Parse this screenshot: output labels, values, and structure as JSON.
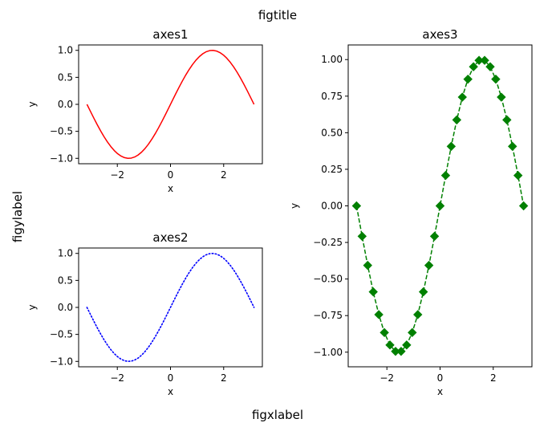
{
  "chart_data": {
    "type": "line",
    "figure": {
      "title": "figtitle",
      "xlabel": "figxlabel",
      "ylabel": "figylabel"
    },
    "axes": [
      {
        "id": "axes1",
        "title": "axes1",
        "xlabel": "x",
        "ylabel": "y",
        "xlim": [
          -3.455,
          3.455
        ],
        "ylim": [
          -1.1,
          1.1
        ],
        "xticks": [
          -2,
          0,
          2
        ],
        "xtick_labels": [
          "−2",
          "0",
          "2"
        ],
        "yticks": [
          -1.0,
          -0.5,
          0.0,
          0.5,
          1.0
        ],
        "ytick_labels": [
          "−1.0",
          "−0.5",
          "0.0",
          "0.5",
          "1.0"
        ],
        "series": [
          {
            "name": "sin(x)",
            "function": "sin",
            "x_range": [
              -3.14159,
              3.14159
            ],
            "n_points": 50,
            "color": "#ff0000",
            "linestyle": "solid",
            "marker": "none"
          }
        ]
      },
      {
        "id": "axes2",
        "title": "axes2",
        "xlabel": "x",
        "ylabel": "y",
        "xlim": [
          -3.455,
          3.455
        ],
        "ylim": [
          -1.1,
          1.1
        ],
        "xticks": [
          -2,
          0,
          2
        ],
        "xtick_labels": [
          "−2",
          "0",
          "2"
        ],
        "yticks": [
          -1.0,
          -0.5,
          0.0,
          0.5,
          1.0
        ],
        "ytick_labels": [
          "−1.0",
          "−0.5",
          "0.0",
          "0.5",
          "1.0"
        ],
        "series": [
          {
            "name": "sin(x)",
            "function": "sin",
            "x_range": [
              -3.14159,
              3.14159
            ],
            "n_points": 50,
            "color": "#0000ff",
            "linestyle": "dotted",
            "marker": "none"
          }
        ]
      },
      {
        "id": "axes3",
        "title": "axes3",
        "xlabel": "x",
        "ylabel": "y",
        "xlim": [
          -3.455,
          3.455
        ],
        "ylim": [
          -1.1,
          1.1
        ],
        "xticks": [
          -2,
          0,
          2
        ],
        "xtick_labels": [
          "−2",
          "0",
          "2"
        ],
        "yticks": [
          -1.0,
          -0.75,
          -0.5,
          -0.25,
          0.0,
          0.25,
          0.5,
          0.75,
          1.0
        ],
        "ytick_labels": [
          "−1.00",
          "−0.75",
          "−0.50",
          "−0.25",
          "0.00",
          "0.25",
          "0.50",
          "0.75",
          "1.00"
        ],
        "series": [
          {
            "name": "sin(x)",
            "function": "sin",
            "x_range": [
              -3.14159,
              3.14159
            ],
            "n_points": 31,
            "color": "#008000",
            "linestyle": "dashed",
            "marker": "diamond"
          }
        ]
      }
    ]
  }
}
